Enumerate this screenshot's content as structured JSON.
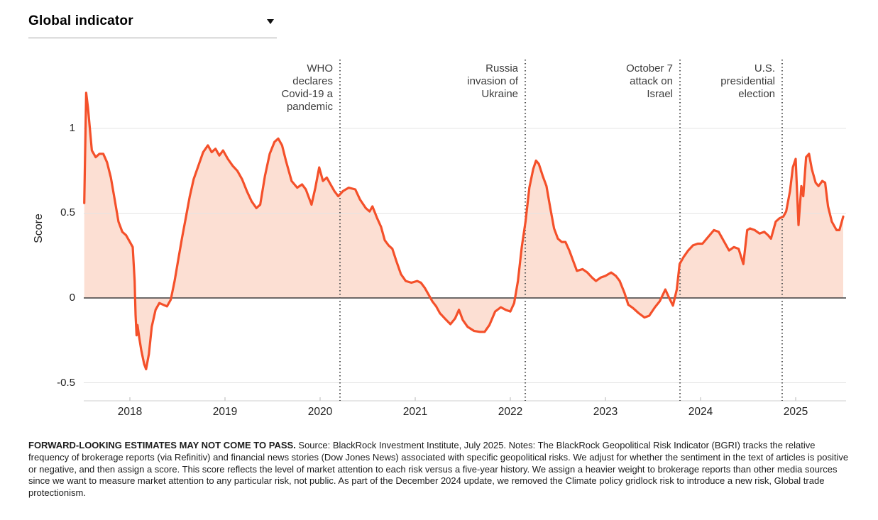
{
  "header": {
    "title": "Global indicator",
    "dropdown_icon": "caret-down-icon"
  },
  "chart_data": {
    "type": "area",
    "title": "BlackRock Geopolitical Risk Indicator (BGRI) — Global indicator",
    "xlabel": "",
    "ylabel": "Score",
    "x_ticks": [
      2018,
      2019,
      2020,
      2021,
      2022,
      2023,
      2024,
      2025
    ],
    "x_tick_labels": [
      "2018",
      "2019",
      "2020",
      "2021",
      "2022",
      "2023",
      "2024",
      "2025"
    ],
    "y_ticks": [
      1,
      0.5,
      0,
      -0.5
    ],
    "y_tick_labels": [
      "1",
      "0.5",
      "0",
      "-0.5"
    ],
    "xlim": [
      2017.51,
      2025.53
    ],
    "ylim": [
      -0.62,
      1.3
    ],
    "grid": "horizontal",
    "legend": "none",
    "line_color": "#f4502a",
    "fill_color": "#fcdfd3",
    "event_line_color": "#555555",
    "zero_line_color": "#3c3c3c",
    "grid_color": "#e4e4e4",
    "axis_color": "#cfcfcf",
    "annotations": [
      {
        "label": "WHO declares Covid-19 a pandemic",
        "text": "WHO\ndeclares\nCovid-19 a\npandemic",
        "x": 2020.209
      },
      {
        "label": "Russia invasion of Ukraine",
        "text": "Russia\ninvasion of\nUkraine",
        "x": 2022.157
      },
      {
        "label": "October 7 attack on Israel",
        "text": "October 7\nattack on\nIsrael",
        "x": 2023.784
      },
      {
        "label": "U.S. presidential election",
        "text": "U.S.\npresidential\nelection",
        "x": 2024.858
      }
    ],
    "series": [
      {
        "name": "Global indicator",
        "points": [
          [
            2017.52,
            0.56
          ],
          [
            2017.54,
            1.21
          ],
          [
            2017.56,
            1.12
          ],
          [
            2017.6,
            0.87
          ],
          [
            2017.64,
            0.83
          ],
          [
            2017.68,
            0.85
          ],
          [
            2017.72,
            0.85
          ],
          [
            2017.76,
            0.8
          ],
          [
            2017.8,
            0.71
          ],
          [
            2017.84,
            0.58
          ],
          [
            2017.88,
            0.45
          ],
          [
            2017.92,
            0.39
          ],
          [
            2017.96,
            0.37
          ],
          [
            2018.0,
            0.33
          ],
          [
            2018.03,
            0.3
          ],
          [
            2018.05,
            0.1
          ],
          [
            2018.06,
            -0.1
          ],
          [
            2018.07,
            -0.22
          ],
          [
            2018.08,
            -0.16
          ],
          [
            2018.1,
            -0.24
          ],
          [
            2018.12,
            -0.31
          ],
          [
            2018.15,
            -0.39
          ],
          [
            2018.17,
            -0.42
          ],
          [
            2018.2,
            -0.33
          ],
          [
            2018.23,
            -0.17
          ],
          [
            2018.27,
            -0.07
          ],
          [
            2018.31,
            -0.03
          ],
          [
            2018.35,
            -0.04
          ],
          [
            2018.39,
            -0.05
          ],
          [
            2018.43,
            -0.01
          ],
          [
            2018.47,
            0.1
          ],
          [
            2018.51,
            0.23
          ],
          [
            2018.55,
            0.36
          ],
          [
            2018.59,
            0.48
          ],
          [
            2018.63,
            0.6
          ],
          [
            2018.67,
            0.7
          ],
          [
            2018.72,
            0.78
          ],
          [
            2018.77,
            0.86
          ],
          [
            2018.82,
            0.9
          ],
          [
            2018.86,
            0.86
          ],
          [
            2018.9,
            0.88
          ],
          [
            2018.94,
            0.84
          ],
          [
            2018.98,
            0.87
          ],
          [
            2019.03,
            0.82
          ],
          [
            2019.08,
            0.78
          ],
          [
            2019.13,
            0.75
          ],
          [
            2019.18,
            0.7
          ],
          [
            2019.23,
            0.63
          ],
          [
            2019.28,
            0.57
          ],
          [
            2019.33,
            0.53
          ],
          [
            2019.37,
            0.55
          ],
          [
            2019.42,
            0.72
          ],
          [
            2019.47,
            0.85
          ],
          [
            2019.52,
            0.92
          ],
          [
            2019.56,
            0.94
          ],
          [
            2019.6,
            0.9
          ],
          [
            2019.64,
            0.81
          ],
          [
            2019.7,
            0.69
          ],
          [
            2019.76,
            0.65
          ],
          [
            2019.81,
            0.67
          ],
          [
            2019.85,
            0.64
          ],
          [
            2019.91,
            0.55
          ],
          [
            2019.95,
            0.65
          ],
          [
            2019.99,
            0.77
          ],
          [
            2020.03,
            0.69
          ],
          [
            2020.07,
            0.71
          ],
          [
            2020.11,
            0.67
          ],
          [
            2020.15,
            0.63
          ],
          [
            2020.19,
            0.6
          ],
          [
            2020.24,
            0.63
          ],
          [
            2020.3,
            0.65
          ],
          [
            2020.37,
            0.64
          ],
          [
            2020.42,
            0.58
          ],
          [
            2020.48,
            0.53
          ],
          [
            2020.52,
            0.51
          ],
          [
            2020.55,
            0.54
          ],
          [
            2020.6,
            0.47
          ],
          [
            2020.64,
            0.42
          ],
          [
            2020.68,
            0.34
          ],
          [
            2020.72,
            0.31
          ],
          [
            2020.76,
            0.29
          ],
          [
            2020.8,
            0.22
          ],
          [
            2020.85,
            0.14
          ],
          [
            2020.9,
            0.1
          ],
          [
            2020.96,
            0.09
          ],
          [
            2021.02,
            0.1
          ],
          [
            2021.06,
            0.09
          ],
          [
            2021.1,
            0.06
          ],
          [
            2021.14,
            0.02
          ],
          [
            2021.18,
            -0.02
          ],
          [
            2021.22,
            -0.05
          ],
          [
            2021.26,
            -0.09
          ],
          [
            2021.31,
            -0.12
          ],
          [
            2021.37,
            -0.155
          ],
          [
            2021.42,
            -0.12
          ],
          [
            2021.46,
            -0.07
          ],
          [
            2021.5,
            -0.13
          ],
          [
            2021.55,
            -0.17
          ],
          [
            2021.62,
            -0.195
          ],
          [
            2021.68,
            -0.2
          ],
          [
            2021.73,
            -0.2
          ],
          [
            2021.78,
            -0.16
          ],
          [
            2021.84,
            -0.08
          ],
          [
            2021.9,
            -0.055
          ],
          [
            2021.95,
            -0.07
          ],
          [
            2022.0,
            -0.08
          ],
          [
            2022.04,
            -0.03
          ],
          [
            2022.08,
            0.1
          ],
          [
            2022.12,
            0.3
          ],
          [
            2022.16,
            0.45
          ],
          [
            2022.2,
            0.65
          ],
          [
            2022.24,
            0.76
          ],
          [
            2022.27,
            0.81
          ],
          [
            2022.3,
            0.79
          ],
          [
            2022.34,
            0.72
          ],
          [
            2022.38,
            0.66
          ],
          [
            2022.42,
            0.53
          ],
          [
            2022.46,
            0.41
          ],
          [
            2022.5,
            0.35
          ],
          [
            2022.54,
            0.33
          ],
          [
            2022.58,
            0.33
          ],
          [
            2022.62,
            0.28
          ],
          [
            2022.66,
            0.22
          ],
          [
            2022.7,
            0.16
          ],
          [
            2022.76,
            0.17
          ],
          [
            2022.81,
            0.15
          ],
          [
            2022.86,
            0.12
          ],
          [
            2022.9,
            0.1
          ],
          [
            2022.95,
            0.12
          ],
          [
            2023.0,
            0.13
          ],
          [
            2023.06,
            0.15
          ],
          [
            2023.11,
            0.13
          ],
          [
            2023.15,
            0.1
          ],
          [
            2023.2,
            0.03
          ],
          [
            2023.24,
            -0.04
          ],
          [
            2023.29,
            -0.06
          ],
          [
            2023.35,
            -0.09
          ],
          [
            2023.41,
            -0.115
          ],
          [
            2023.46,
            -0.105
          ],
          [
            2023.52,
            -0.055
          ],
          [
            2023.57,
            -0.02
          ],
          [
            2023.63,
            0.05
          ],
          [
            2023.67,
            0.0
          ],
          [
            2023.71,
            -0.045
          ],
          [
            2023.75,
            0.05
          ],
          [
            2023.78,
            0.2
          ],
          [
            2023.82,
            0.24
          ],
          [
            2023.87,
            0.28
          ],
          [
            2023.92,
            0.31
          ],
          [
            2023.97,
            0.32
          ],
          [
            2024.02,
            0.32
          ],
          [
            2024.08,
            0.36
          ],
          [
            2024.14,
            0.4
          ],
          [
            2024.19,
            0.39
          ],
          [
            2024.25,
            0.33
          ],
          [
            2024.3,
            0.28
          ],
          [
            2024.35,
            0.3
          ],
          [
            2024.4,
            0.29
          ],
          [
            2024.45,
            0.2
          ],
          [
            2024.49,
            0.4
          ],
          [
            2024.52,
            0.41
          ],
          [
            2024.57,
            0.4
          ],
          [
            2024.62,
            0.38
          ],
          [
            2024.67,
            0.39
          ],
          [
            2024.71,
            0.37
          ],
          [
            2024.74,
            0.35
          ],
          [
            2024.79,
            0.45
          ],
          [
            2024.83,
            0.47
          ],
          [
            2024.87,
            0.48
          ],
          [
            2024.9,
            0.51
          ],
          [
            2024.94,
            0.63
          ],
          [
            2024.97,
            0.77
          ],
          [
            2025.0,
            0.82
          ],
          [
            2025.03,
            0.43
          ],
          [
            2025.06,
            0.66
          ],
          [
            2025.08,
            0.6
          ],
          [
            2025.11,
            0.83
          ],
          [
            2025.14,
            0.85
          ],
          [
            2025.17,
            0.76
          ],
          [
            2025.21,
            0.68
          ],
          [
            2025.24,
            0.66
          ],
          [
            2025.28,
            0.69
          ],
          [
            2025.31,
            0.68
          ],
          [
            2025.34,
            0.54
          ],
          [
            2025.38,
            0.45
          ],
          [
            2025.43,
            0.4
          ],
          [
            2025.46,
            0.4
          ],
          [
            2025.5,
            0.48
          ]
        ]
      }
    ]
  },
  "footer": {
    "disclaimer": "FORWARD-LOOKING ESTIMATES MAY NOT COME TO PASS.",
    "text": " Source: BlackRock Investment Institute, July 2025. Notes: The BlackRock Geopolitical Risk Indicator (BGRI) tracks the relative frequency of brokerage reports (via Refinitiv) and financial news stories (Dow Jones News) associated with specific geopolitical risks. We adjust for whether the sentiment in the text of articles is positive or negative, and then assign a score. This score reflects the level of market attention to each risk versus a five-year history. We assign a heavier weight to brokerage reports than other media sources since we want to measure market attention to any particular risk, not public. As part of the December 2024 update, we removed the Climate policy gridlock risk to introduce a new risk, Global trade protectionism."
  }
}
